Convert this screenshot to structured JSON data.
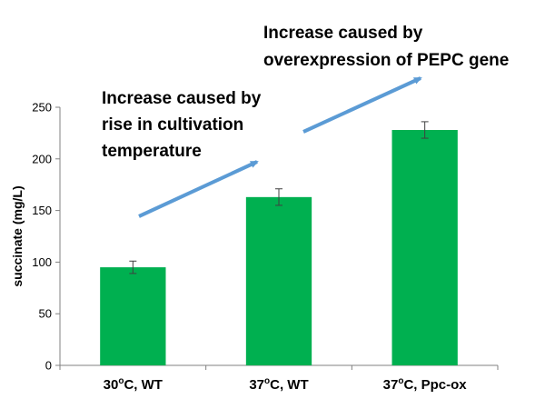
{
  "chart_data": {
    "type": "bar",
    "categories": [
      {
        "pre": "30",
        "sup": "o",
        "post": "C, WT"
      },
      {
        "pre": "37",
        "sup": "o",
        "post": "C, WT"
      },
      {
        "pre": "37",
        "sup": "o",
        "post": "C, Ppc-ox"
      }
    ],
    "values": [
      95,
      163,
      228
    ],
    "errors": [
      6,
      8,
      8
    ],
    "ylabel": "succinate (mg/L)",
    "ylim": [
      0,
      250
    ],
    "yticks": [
      0,
      50,
      100,
      150,
      200,
      250
    ],
    "grid": false,
    "bar_color": "#00b050",
    "arrow_color": "#5b9bd5",
    "annotations": [
      {
        "lines": [
          "Increase caused by",
          "rise in cultivation",
          "temperature"
        ]
      },
      {
        "lines": [
          "Increase caused by",
          "overexpression of PEPC gene"
        ]
      }
    ]
  }
}
